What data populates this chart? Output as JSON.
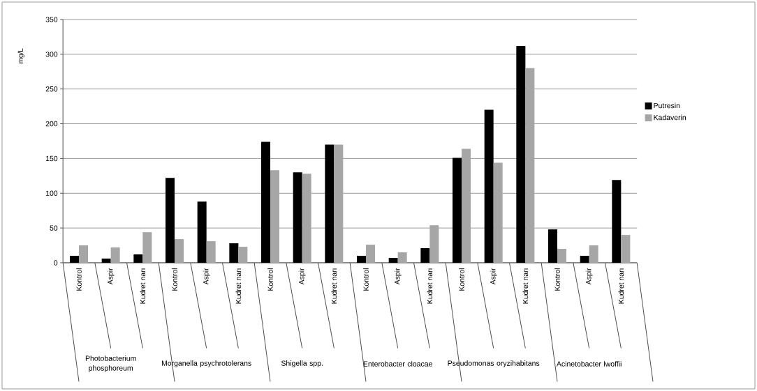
{
  "chart_data": {
    "type": "bar",
    "ylabel": "mg/L",
    "categories": [
      "Kontrol",
      "Aspir",
      "Kudret narı",
      "Kontrol",
      "Aspir",
      "Kudret narı",
      "Kontrol",
      "Aspir",
      "Kudret narı",
      "Kontrol",
      "Aspir",
      "Kudret narı",
      "Kontrol",
      "Aspir",
      "Kudret narı",
      "Kontrol",
      "Aspir",
      "Kudret narı"
    ],
    "series": [
      {
        "name": "Putresin",
        "color": "#000000",
        "values": [
          10,
          6,
          12,
          122,
          88,
          28,
          174,
          130,
          170,
          10,
          7,
          21,
          151,
          220,
          312,
          48,
          10,
          119
        ]
      },
      {
        "name": "Kadaverin",
        "color": "#a6a6a6",
        "values": [
          25,
          22,
          44,
          34,
          31,
          23,
          133,
          128,
          170,
          26,
          15,
          54,
          164,
          144,
          280,
          20,
          25,
          40
        ]
      }
    ],
    "annotations": [
      "Photobacterium phosphoreum",
      "Morganella psychrotolerans",
      "Shigella spp.",
      "Enterobacter cloacae",
      "Pseudomonas oryzihabitans",
      "Acinetobacter lwoffii"
    ],
    "ylim": [
      0,
      350
    ],
    "yticks": [
      0,
      50,
      100,
      150,
      200,
      250,
      300,
      350
    ],
    "grid": "y",
    "legend": "right"
  }
}
